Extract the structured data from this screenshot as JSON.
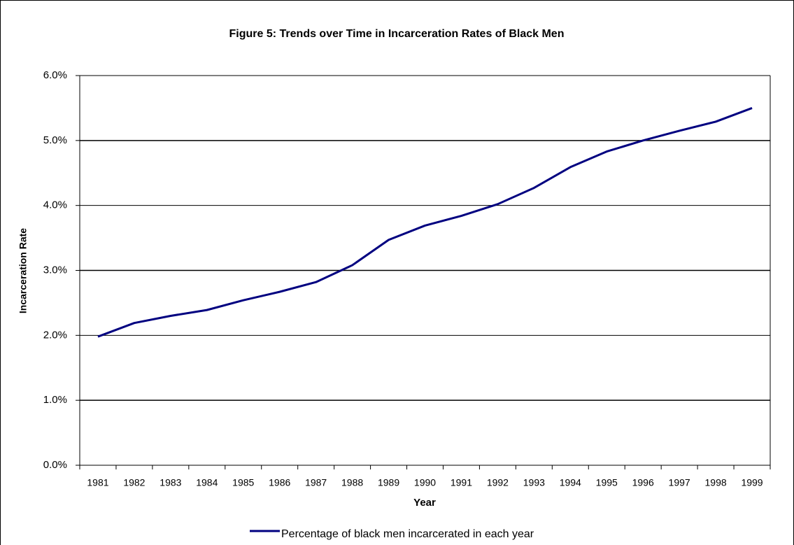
{
  "chart_data": {
    "type": "line",
    "title": "Figure 5: Trends over Time in Incarceration Rates of Black Men",
    "x_label": "Year",
    "y_label": "Incarceration Rate",
    "categories": [
      "1981",
      "1982",
      "1983",
      "1984",
      "1985",
      "1986",
      "1987",
      "1988",
      "1989",
      "1990",
      "1991",
      "1992",
      "1993",
      "1994",
      "1995",
      "1996",
      "1997",
      "1998",
      "1999"
    ],
    "series": [
      {
        "name": "Percentage of black men incarcerated in each year",
        "color": "#000080",
        "values": [
          1.98,
          2.19,
          2.3,
          2.39,
          2.54,
          2.67,
          2.82,
          3.08,
          3.47,
          3.69,
          3.84,
          4.02,
          4.27,
          4.59,
          4.83,
          5.0,
          5.15,
          5.29,
          5.5
        ]
      }
    ],
    "ylim": [
      0,
      6
    ],
    "yticks": [
      {
        "value": 0,
        "label": "0.0%"
      },
      {
        "value": 1,
        "label": "1.0%"
      },
      {
        "value": 2,
        "label": "2.0%"
      },
      {
        "value": 3,
        "label": "3.0%"
      },
      {
        "value": 4,
        "label": "4.0%"
      },
      {
        "value": 5,
        "label": "5.0%"
      },
      {
        "value": 6,
        "label": "6.0%"
      }
    ],
    "grid": true,
    "legend": "bottom"
  }
}
